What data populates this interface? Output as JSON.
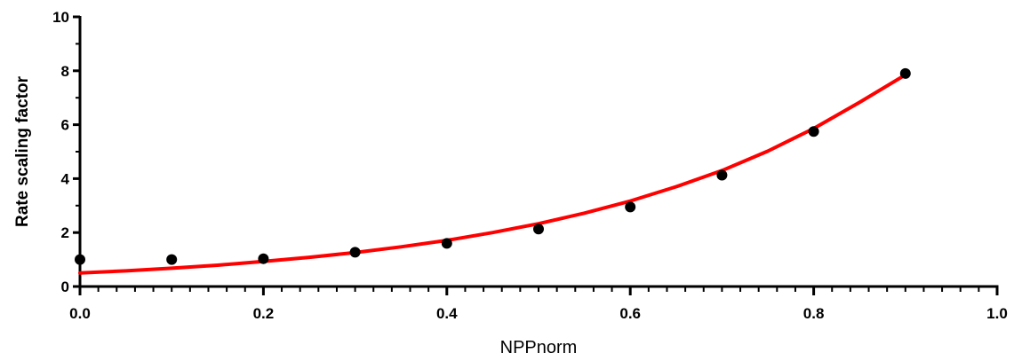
{
  "chart_data": {
    "type": "scatter",
    "title": "",
    "xlabel": "NPPnorm",
    "ylabel": "Rate scaling factor",
    "xlim": [
      0,
      1.0
    ],
    "ylim": [
      0,
      10
    ],
    "x_ticks": [
      0.0,
      0.2,
      0.4,
      0.6,
      0.8,
      1.0
    ],
    "x_tick_labels": [
      "0.0",
      "0.2",
      "0.4",
      "0.6",
      "0.8",
      "1.0"
    ],
    "y_ticks": [
      0,
      2,
      4,
      6,
      8,
      10
    ],
    "y_tick_labels": [
      "0",
      "2",
      "4",
      "6",
      "8",
      "10"
    ],
    "grid": false,
    "series": [
      {
        "kind": "points",
        "color": "#000000",
        "x": [
          0.0,
          0.1,
          0.2,
          0.3,
          0.4,
          0.5,
          0.6,
          0.7,
          0.8,
          0.9
        ],
        "y": [
          1.0,
          1.0,
          1.03,
          1.27,
          1.6,
          2.13,
          2.95,
          4.13,
          5.75,
          7.9
        ]
      },
      {
        "kind": "fit-curve",
        "color": "#ff0000",
        "x": [
          0.0,
          0.05,
          0.1,
          0.15,
          0.2,
          0.25,
          0.3,
          0.35,
          0.4,
          0.45,
          0.5,
          0.55,
          0.6,
          0.65,
          0.7,
          0.75,
          0.8,
          0.85,
          0.9
        ],
        "y": [
          0.5,
          0.58,
          0.68,
          0.79,
          0.93,
          1.08,
          1.26,
          1.47,
          1.71,
          2.0,
          2.33,
          2.72,
          3.17,
          3.7,
          4.3,
          5.02,
          5.86,
          6.83,
          7.85
        ]
      }
    ]
  }
}
